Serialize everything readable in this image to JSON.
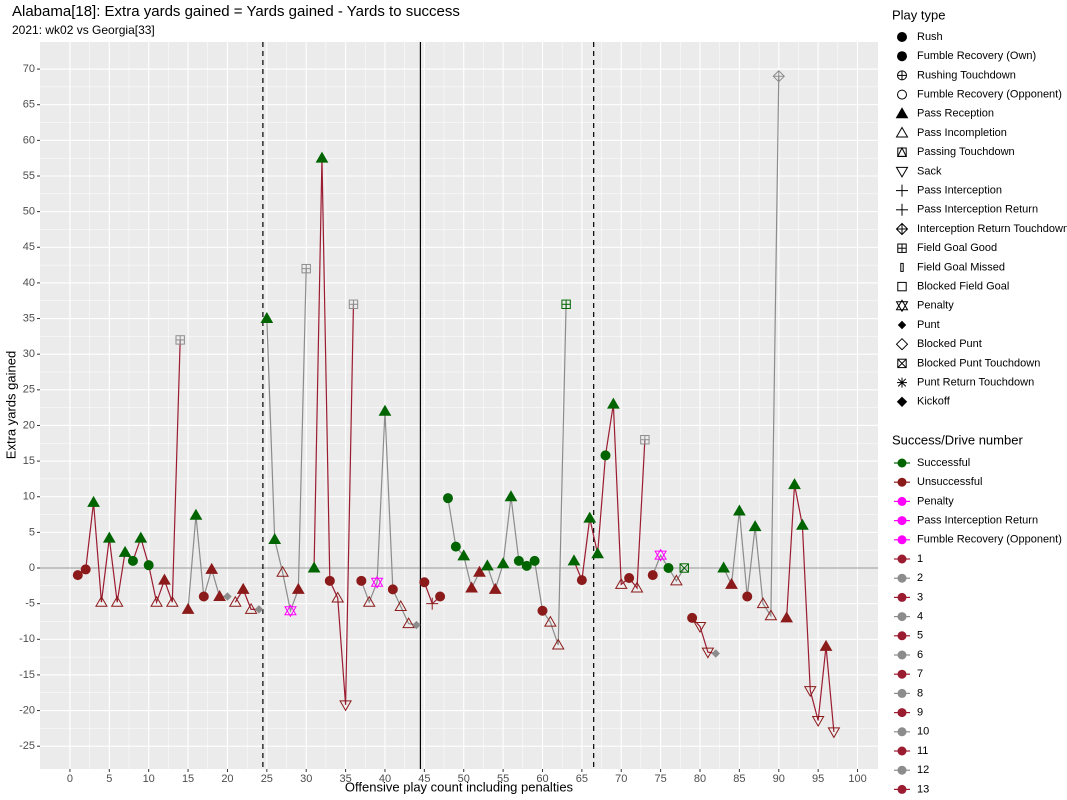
{
  "chart_data": {
    "type": "scatter",
    "title": "Alabama[18]: Extra yards gained = Yards gained - Yards to success",
    "subtitle": "2021: wk02 vs Georgia[33]",
    "x_label": "Offensive play count including penalties",
    "y_label": "Extra yards gained",
    "xlim": [
      -3.8,
      102.6
    ],
    "ylim": [
      -28.2,
      73.8
    ],
    "xticks": [
      0,
      5,
      10,
      15,
      20,
      25,
      30,
      35,
      40,
      45,
      50,
      55,
      60,
      65,
      70,
      75,
      80,
      85,
      90,
      95,
      100
    ],
    "yticks": [
      -25,
      -20,
      -15,
      -10,
      -5,
      0,
      5,
      10,
      15,
      20,
      25,
      30,
      35,
      40,
      45,
      50,
      55,
      60,
      65,
      70
    ],
    "grid": true,
    "zero_line": 0,
    "vlines": [
      {
        "value": 24.5,
        "linetype": "dashed"
      },
      {
        "value": 44.5,
        "linetype": "solid"
      },
      {
        "value": 66.5,
        "linetype": "dashed"
      }
    ],
    "na_color": "#8c8c8c",
    "shape_legend": {
      "title": "Play type",
      "entries": [
        {
          "name": "Rush",
          "shape": "circle"
        },
        {
          "name": "Fumble Recovery (Own)",
          "shape": "circle"
        },
        {
          "name": "Rushing Touchdown",
          "shape": "circle-plus"
        },
        {
          "name": "Fumble Recovery (Opponent)",
          "shape": "circle-open"
        },
        {
          "name": "Pass Reception",
          "shape": "triangle"
        },
        {
          "name": "Pass Incompletion",
          "shape": "triangle-open"
        },
        {
          "name": "Passing Touchdown",
          "shape": "square-triangle"
        },
        {
          "name": "Sack",
          "shape": "triangle-down-open"
        },
        {
          "name": "Pass Interception",
          "shape": "plus"
        },
        {
          "name": "Pass Interception Return",
          "shape": "plus"
        },
        {
          "name": "Interception Return Touchdown",
          "shape": "diamond-plus"
        },
        {
          "name": "Field Goal Good",
          "shape": "square-plus"
        },
        {
          "name": "Field Goal Missed",
          "shape": "bar-open"
        },
        {
          "name": "Blocked Field Goal",
          "shape": "square-open"
        },
        {
          "name": "Penalty",
          "shape": "star"
        },
        {
          "name": "Punt",
          "shape": "diamond-small"
        },
        {
          "name": "Blocked Punt",
          "shape": "diamond-open"
        },
        {
          "name": "Blocked Punt Touchdown",
          "shape": "square-x"
        },
        {
          "name": "Punt Return Touchdown",
          "shape": "asterisk"
        },
        {
          "name": "Kickoff",
          "shape": "diamond"
        }
      ]
    },
    "color_legend": {
      "title": "Success/Drive number",
      "entries": [
        {
          "name": "Successful",
          "color": "#006400"
        },
        {
          "name": "Unsuccessful",
          "color": "#8b1a1a"
        },
        {
          "name": "Penalty",
          "color": "#ff00ff"
        },
        {
          "name": "Pass Interception Return",
          "color": "#ff00ff"
        },
        {
          "name": "Fumble Recovery (Opponent)",
          "color": "#ff00ff"
        }
      ]
    },
    "series": [
      {
        "name": "1",
        "color": "#9b1b30",
        "x": [
          1,
          2,
          3,
          4,
          5,
          6,
          7,
          8,
          9,
          10,
          11,
          12,
          13,
          14
        ],
        "y": [
          -1,
          -0.2,
          9.2,
          -4.8,
          4.2,
          -4.8,
          2.2,
          1,
          4.2,
          0.4,
          -4.8,
          -1.7,
          -4.8,
          32
        ],
        "play": [
          "Rush",
          "Rush",
          "Pass Reception",
          "Pass Incompletion",
          "Pass Reception",
          "Pass Incompletion",
          "Pass Reception",
          "Rush",
          "Pass Reception",
          "Rush",
          "Pass Incompletion",
          "Pass Reception",
          "Pass Incompletion",
          "Field Goal Good"
        ],
        "success": [
          "Unsuccessful",
          "Unsuccessful",
          "Successful",
          "Unsuccessful",
          "Successful",
          "Unsuccessful",
          "Successful",
          "Successful",
          "Successful",
          "Successful",
          "Unsuccessful",
          "Unsuccessful",
          "Unsuccessful",
          null
        ]
      },
      {
        "name": "2",
        "color": "#8c8c8c",
        "x": [
          15,
          16,
          17,
          18,
          19,
          20
        ],
        "y": [
          -5.8,
          7.4,
          -4,
          -0.2,
          -4,
          -4
        ],
        "play": [
          "Pass Reception",
          "Pass Reception",
          "Rush",
          "Pass Reception",
          "Pass Reception",
          "Punt"
        ],
        "success": [
          "Unsuccessful",
          "Successful",
          "Unsuccessful",
          "Unsuccessful",
          "Unsuccessful",
          null
        ]
      },
      {
        "name": "3",
        "color": "#9b1b30",
        "x": [
          21,
          22,
          23,
          24
        ],
        "y": [
          -4.8,
          -3,
          -5.8,
          -5.8
        ],
        "play": [
          "Pass Incompletion",
          "Pass Reception",
          "Pass Incompletion",
          "Punt"
        ],
        "success": [
          "Unsuccessful",
          "Unsuccessful",
          "Unsuccessful",
          null
        ]
      },
      {
        "name": "4",
        "color": "#8c8c8c",
        "x": [
          25,
          26,
          27,
          28,
          29,
          30
        ],
        "y": [
          35,
          4,
          -0.6,
          -6,
          -3,
          42
        ],
        "play": [
          "Pass Reception",
          "Pass Reception",
          "Pass Incompletion",
          "Penalty",
          "Pass Reception",
          "Field Goal Good"
        ],
        "success": [
          "Successful",
          "Successful",
          "Unsuccessful",
          "Penalty",
          "Unsuccessful",
          null
        ]
      },
      {
        "name": "5",
        "color": "#9b1b30",
        "x": [
          31,
          32,
          33,
          34,
          35,
          36
        ],
        "y": [
          0,
          57.5,
          -1.8,
          -4.2,
          -19.2,
          37
        ],
        "play": [
          "Pass Reception",
          "Pass Reception",
          "Rush",
          "Pass Incompletion",
          "Sack",
          "Field Goal Good"
        ],
        "success": [
          "Successful",
          "Successful",
          "Unsuccessful",
          "Unsuccessful",
          "Unsuccessful",
          null
        ]
      },
      {
        "name": "6",
        "color": "#8c8c8c",
        "x": [
          37,
          38,
          39,
          40,
          41,
          42,
          43,
          44
        ],
        "y": [
          -1.8,
          -4.8,
          -2,
          22,
          -3,
          -5.4,
          -7.8,
          -8
        ],
        "play": [
          "Rush",
          "Pass Incompletion",
          "Penalty",
          "Pass Reception",
          "Rush",
          "Pass Incompletion",
          "Pass Incompletion",
          "Punt"
        ],
        "success": [
          "Unsuccessful",
          "Unsuccessful",
          "Penalty",
          "Successful",
          "Unsuccessful",
          "Unsuccessful",
          "Unsuccessful",
          null
        ]
      },
      {
        "name": "7",
        "color": "#9b1b30",
        "x": [
          45,
          46,
          47
        ],
        "y": [
          -2,
          -5,
          -4
        ],
        "play": [
          "Rush",
          "Pass Interception",
          "Rush"
        ],
        "success": [
          "Unsuccessful",
          "Unsuccessful",
          "Unsuccessful"
        ]
      },
      {
        "name": "8",
        "color": "#8c8c8c",
        "x": [
          48,
          49,
          50,
          51,
          52,
          53,
          54,
          55,
          56,
          57,
          58,
          59,
          60,
          61,
          62,
          63
        ],
        "y": [
          9.8,
          3,
          1.7,
          -2.8,
          -0.6,
          0.3,
          -3,
          0.6,
          10,
          1,
          0.3,
          1,
          -6,
          -7.6,
          -10.8,
          37
        ],
        "play": [
          "Rush",
          "Rush",
          "Pass Reception",
          "Pass Reception",
          "Pass Reception",
          "Pass Reception",
          "Pass Reception",
          "Pass Reception",
          "Pass Reception",
          "Rush",
          "Rush",
          "Rush",
          "Rush",
          "Pass Incompletion",
          "Pass Incompletion",
          "Field Goal Good"
        ],
        "success": [
          "Successful",
          "Successful",
          "Successful",
          "Unsuccessful",
          "Unsuccessful",
          "Successful",
          "Unsuccessful",
          "Successful",
          "Successful",
          "Successful",
          "Successful",
          "Successful",
          "Unsuccessful",
          "Unsuccessful",
          "Unsuccessful",
          "Successful"
        ]
      },
      {
        "name": "9",
        "color": "#9b1b30",
        "x": [
          64,
          65,
          66,
          67,
          68,
          69,
          70,
          71,
          72,
          73
        ],
        "y": [
          1,
          -1.7,
          7,
          2,
          15.8,
          23,
          -2.3,
          -1.4,
          -2.8,
          18
        ],
        "play": [
          "Pass Reception",
          "Rush",
          "Pass Reception",
          "Pass Reception",
          "Rush",
          "Pass Reception",
          "Pass Incompletion",
          "Rush",
          "Pass Incompletion",
          "Field Goal Good"
        ],
        "success": [
          "Successful",
          "Unsuccessful",
          "Successful",
          "Successful",
          "Successful",
          "Successful",
          "Unsuccessful",
          "Unsuccessful",
          "Unsuccessful",
          null
        ]
      },
      {
        "name": "10",
        "color": "#8c8c8c",
        "x": [
          74,
          75,
          76,
          77,
          78
        ],
        "y": [
          -1,
          1.8,
          0,
          -1.8,
          0
        ],
        "play": [
          "Rush",
          "Penalty",
          "Rush",
          "Pass Incompletion",
          "Blocked Punt Touchdown"
        ],
        "success": [
          "Unsuccessful",
          "Penalty",
          "Successful",
          "Unsuccessful",
          "Successful"
        ]
      },
      {
        "name": "11",
        "color": "#9b1b30",
        "x": [
          79,
          80,
          81,
          82
        ],
        "y": [
          -7,
          -8.2,
          -11.8,
          -12
        ],
        "play": [
          "Rush",
          "Sack",
          "Sack",
          "Punt"
        ],
        "success": [
          "Unsuccessful",
          "Unsuccessful",
          "Unsuccessful",
          null
        ]
      },
      {
        "name": "12",
        "color": "#8c8c8c",
        "x": [
          83,
          84,
          85,
          86,
          87,
          88,
          89,
          90
        ],
        "y": [
          0,
          -2.3,
          8,
          -4,
          5.8,
          -5,
          -6.7,
          69
        ],
        "play": [
          "Pass Reception",
          "Pass Reception",
          "Pass Reception",
          "Rush",
          "Pass Reception",
          "Pass Incompletion",
          "Pass Incompletion",
          "Interception Return Touchdown"
        ],
        "success": [
          "Successful",
          "Unsuccessful",
          "Successful",
          "Unsuccessful",
          "Successful",
          "Unsuccessful",
          "Unsuccessful",
          null
        ]
      },
      {
        "name": "13",
        "color": "#9b1b30",
        "x": [
          91,
          92,
          93,
          94,
          95,
          96,
          97
        ],
        "y": [
          -7,
          11.7,
          6,
          -17.2,
          -21.4,
          -11,
          -23
        ],
        "play": [
          "Pass Reception",
          "Pass Reception",
          "Pass Reception",
          "Sack",
          "Sack",
          "Pass Reception",
          "Sack"
        ],
        "success": [
          "Unsuccessful",
          "Successful",
          "Successful",
          "Unsuccessful",
          "Unsuccessful",
          "Unsuccessful",
          "Unsuccessful"
        ]
      }
    ]
  }
}
